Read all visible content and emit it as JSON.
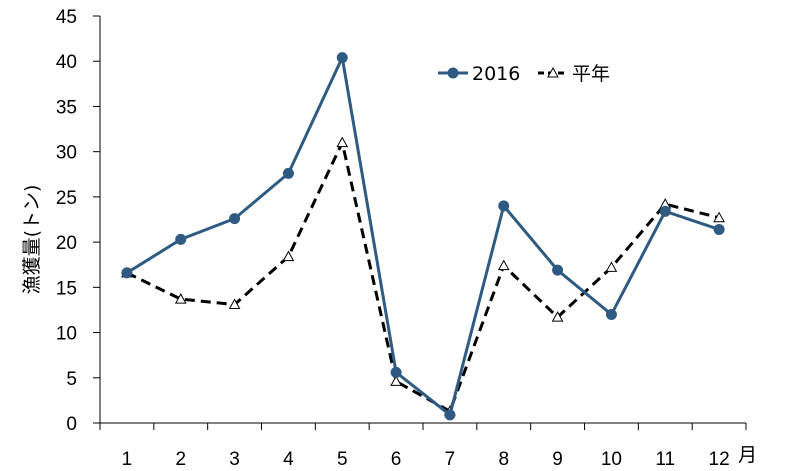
{
  "chart_data": {
    "type": "line",
    "categories": [
      "1",
      "2",
      "3",
      "4",
      "5",
      "6",
      "7",
      "8",
      "9",
      "10",
      "11",
      "12"
    ],
    "series": [
      {
        "name": "2016",
        "values": [
          16.6,
          20.3,
          22.6,
          27.6,
          40.4,
          5.6,
          0.9,
          24.0,
          16.9,
          12.0,
          23.4,
          21.4
        ],
        "color": "#2f5a82",
        "line": "solid",
        "marker": "circle"
      },
      {
        "name": "平年",
        "values": [
          16.6,
          13.7,
          13.1,
          18.4,
          31.0,
          4.6,
          1.3,
          17.4,
          11.7,
          17.2,
          24.2,
          22.7
        ],
        "color": "#000000",
        "line": "dashed",
        "marker": "open-triangle"
      }
    ],
    "ylabel": "漁獲量(トン)",
    "xunit": "月",
    "ylim": [
      0,
      45
    ],
    "yticks": [
      0,
      5,
      10,
      15,
      20,
      25,
      30,
      35,
      40,
      45
    ],
    "grid": false,
    "legend_position": "top-right"
  }
}
